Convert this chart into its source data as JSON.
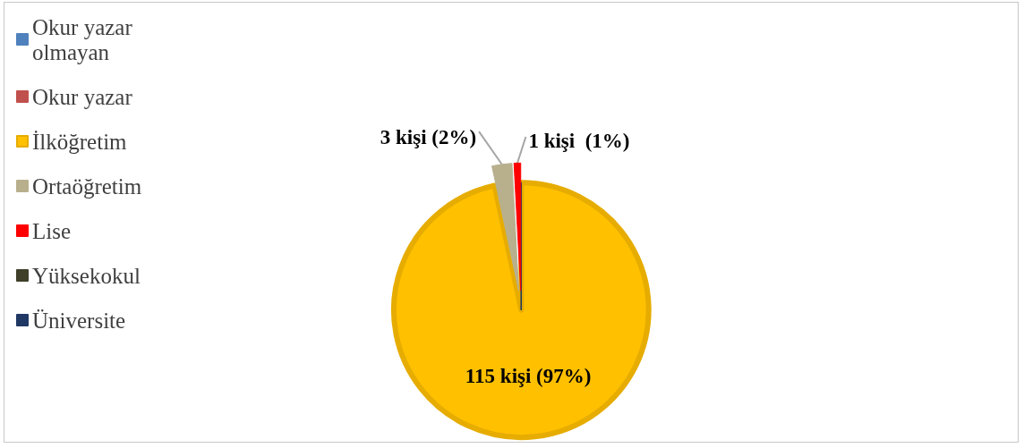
{
  "chart_data": {
    "type": "pie",
    "categories": [
      "Okur yazar olmayan",
      "Okur yazar",
      "İlköğretim",
      "Ortaöğretim",
      "Lise",
      "Yüksekokul",
      "Üniversite"
    ],
    "values": [
      0,
      0,
      115,
      3,
      1,
      0,
      0
    ],
    "colors": [
      "#4f81bd",
      "#c0504d",
      "#ffc000",
      "#b8b08d",
      "#ff0000",
      "#3f3f2a",
      "#1f3864"
    ],
    "value_labels": [
      null,
      null,
      "115 kişi (97%)",
      "3 kişi (2%)",
      "1 kişi  (1%)",
      null,
      null
    ],
    "legend": "left"
  }
}
